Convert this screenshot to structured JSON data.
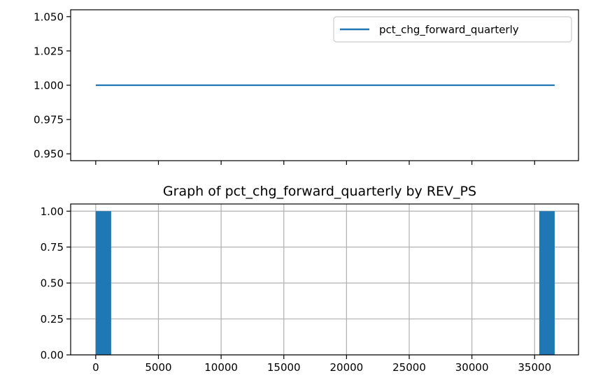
{
  "colors": {
    "series": "#1f77b4",
    "grid": "#b0b0b0",
    "axis": "#000000"
  },
  "chart_data": [
    {
      "type": "line",
      "title": "",
      "xlabel": "",
      "ylabel": "",
      "x": [
        0,
        36600
      ],
      "series": [
        {
          "name": "pct_chg_forward_quarterly",
          "values": [
            1.0,
            1.0
          ]
        }
      ],
      "xlim": [
        -2000,
        38500
      ],
      "ylim": [
        0.945,
        1.055
      ],
      "x_ticks": [
        0,
        5000,
        10000,
        15000,
        20000,
        25000,
        30000,
        35000
      ],
      "x_tick_labels_visible": false,
      "y_ticks": [
        0.95,
        0.975,
        1.0,
        1.025,
        1.05
      ],
      "y_tick_labels": [
        "0.950",
        "0.975",
        "1.000",
        "1.025",
        "1.050"
      ],
      "grid": false,
      "legend": "top-right"
    },
    {
      "type": "bar",
      "title": "Graph of pct_chg_forward_quarterly by REV_PS",
      "xlabel": "",
      "ylabel": "",
      "bins": [
        {
          "x0": 0,
          "x1": 1230,
          "value": 1
        },
        {
          "x0": 35370,
          "x1": 36600,
          "value": 1
        }
      ],
      "xlim": [
        -2000,
        38500
      ],
      "ylim": [
        0,
        1.05
      ],
      "x_ticks": [
        0,
        5000,
        10000,
        15000,
        20000,
        25000,
        30000,
        35000
      ],
      "x_tick_labels": [
        "0",
        "5000",
        "10000",
        "15000",
        "20000",
        "25000",
        "30000",
        "35000"
      ],
      "y_ticks": [
        0,
        0.25,
        0.5,
        0.75,
        1.0
      ],
      "y_tick_labels": [
        "0.00",
        "0.25",
        "0.50",
        "0.75",
        "1.00"
      ],
      "grid": true
    }
  ]
}
